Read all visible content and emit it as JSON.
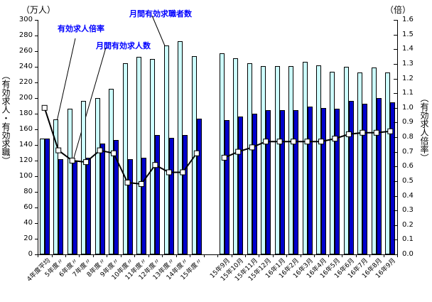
{
  "chart_data": {
    "type": "bar+line",
    "categories": [
      "4年度平均",
      "5年度〃",
      "6年度〃",
      "7年度〃",
      "8年度〃",
      "9年度〃",
      "10年度〃",
      "11年度〃",
      "12年度〃",
      "13年度〃",
      "14年度〃",
      "15年度〃",
      "",
      "15年9月",
      "15年10月",
      "15年11月",
      "15年12月",
      "16年1月",
      "16年2月",
      "16年3月",
      "16年4月",
      "16年5月",
      "16年6月",
      "16年7月",
      "16年8月",
      "16年9月"
    ],
    "series": [
      {
        "name": "月間有効求職者数",
        "type": "bar",
        "axis": "left",
        "color": "#CCFFFF",
        "values": [
          148,
          173,
          186,
          196,
          200,
          212,
          245,
          253,
          250,
          267,
          273,
          254,
          null,
          257,
          251,
          245,
          241,
          241,
          241,
          246,
          242,
          234,
          240,
          233,
          239,
          233
        ]
      },
      {
        "name": "月間有効求人数",
        "type": "bar",
        "axis": "left",
        "color": "#0000CC",
        "values": [
          148,
          122,
          119,
          124,
          142,
          146,
          122,
          124,
          153,
          149,
          153,
          174,
          null,
          172,
          176,
          180,
          185,
          185,
          185,
          189,
          187,
          186,
          196,
          193,
          200,
          195
        ]
      },
      {
        "name": "有効求人倍率",
        "type": "line",
        "axis": "right",
        "color": "#000000",
        "marker_fill": "#FFFFFF",
        "values": [
          1.0,
          0.71,
          0.64,
          0.63,
          0.71,
          0.69,
          0.49,
          0.48,
          0.61,
          0.56,
          0.56,
          0.69,
          null,
          0.66,
          0.7,
          0.73,
          0.77,
          0.77,
          0.77,
          0.77,
          0.77,
          0.79,
          0.82,
          0.83,
          0.83,
          0.84
        ]
      }
    ],
    "left_axis": {
      "caption": "（万人）",
      "title": "（有効求人・有効求職）",
      "min": 0,
      "max": 300,
      "step": 20,
      "tick_labels": [
        "0",
        "20",
        "40",
        "60",
        "80",
        "100",
        "120",
        "140",
        "160",
        "180",
        "200",
        "220",
        "240",
        "260",
        "280",
        "300"
      ]
    },
    "right_axis": {
      "caption": "（倍）",
      "title": "（有効求人倍率）",
      "min": 0,
      "max": 1.6,
      "step": 0.1,
      "tick_labels": [
        "0.0",
        "0.1",
        "0.2",
        "0.3",
        "0.4",
        "0.5",
        "0.6",
        "0.7",
        "0.8",
        "0.9",
        "1.0",
        "1.1",
        "1.2",
        "1.3",
        "1.4",
        "1.5",
        "1.6"
      ]
    },
    "annotations": [
      {
        "text": "有効求人倍率",
        "color": "#0000FF"
      },
      {
        "text": "月間有効求人数",
        "color": "#0000FF"
      },
      {
        "text": "月間有効求職者数",
        "color": "#0000FF"
      }
    ],
    "legend_position": "none",
    "grid": false,
    "gap_slot_index": 12
  }
}
